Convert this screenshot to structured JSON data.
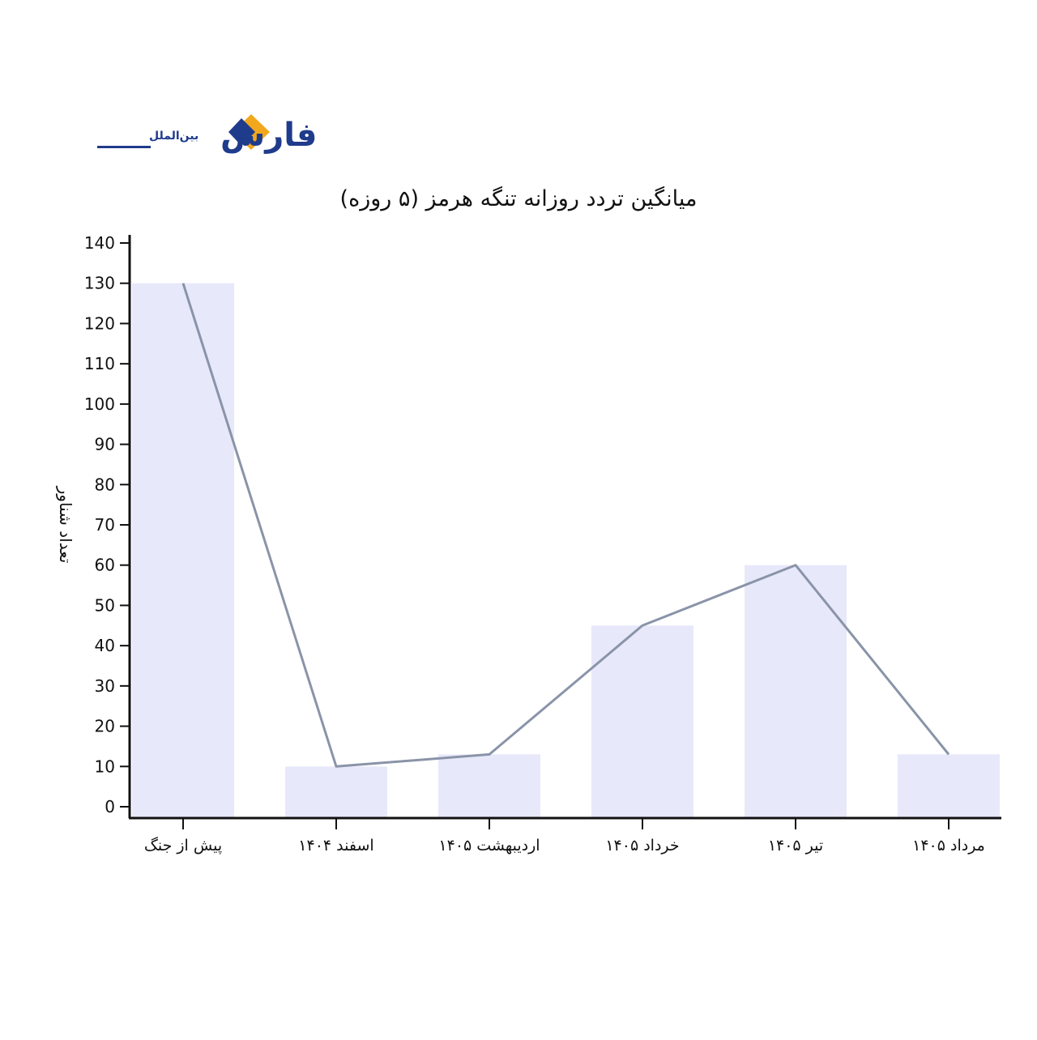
{
  "brand": {
    "name": "فارس",
    "sub": "بین‌الملل",
    "colors": {
      "blue": "#1f3b8c",
      "orange": "#f2a81d"
    }
  },
  "chart_data": {
    "type": "bar",
    "title": "میانگین تردد روزانه تنگه هرمز (۵ روزه)",
    "xlabel": "",
    "ylabel": "تعداد شناور",
    "categories": [
      "پیش از جنگ",
      "اسفند ۱۴۰۴",
      "اردیبهشت ۱۴۰۵",
      "خرداد ۱۴۰۵",
      "تیر ۱۴۰۵",
      "مرداد ۱۴۰۵"
    ],
    "series": [
      {
        "type": "bar",
        "values": [
          130,
          10,
          13,
          45,
          60,
          13
        ]
      },
      {
        "type": "line",
        "values": [
          130,
          10,
          13,
          45,
          60,
          13
        ]
      }
    ],
    "ylim": [
      0,
      140
    ],
    "yticks": [
      0,
      10,
      20,
      30,
      40,
      50,
      60,
      70,
      80,
      90,
      100,
      110,
      120,
      130,
      140
    ],
    "grid": false,
    "colors": {
      "bar": "#e8e8fb",
      "line": "#8a94a8",
      "axis": "#111111"
    }
  }
}
